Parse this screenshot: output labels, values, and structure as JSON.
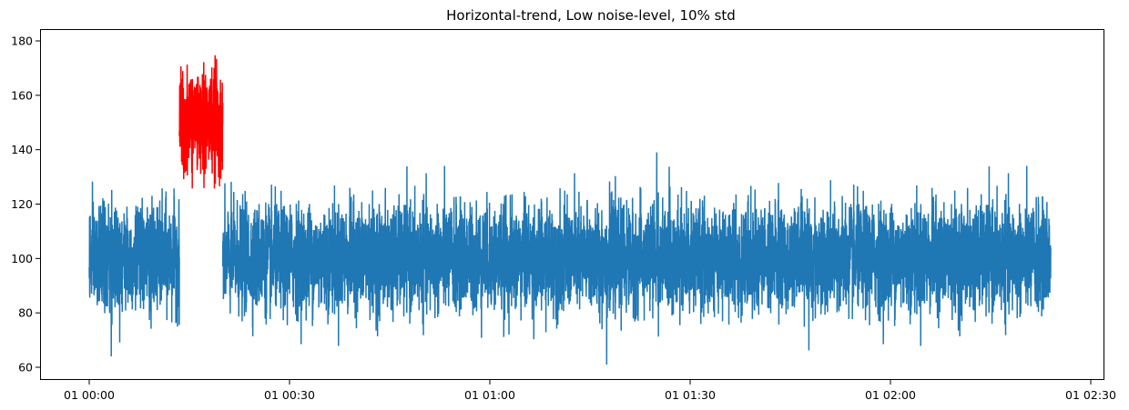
{
  "chart_data": {
    "type": "line",
    "title": "Horizontal-trend, Low noise-level, 10% std",
    "xlabel": "",
    "ylabel": "",
    "xlim": [
      "01 00:00",
      "01 02:30"
    ],
    "ylim": [
      55,
      184
    ],
    "grid": false,
    "legend": "none",
    "x_ticks": [
      {
        "label": "01 00:00",
        "minute": 0
      },
      {
        "label": "01 00:30",
        "minute": 30
      },
      {
        "label": "01 01:00",
        "minute": 60
      },
      {
        "label": "01 01:30",
        "minute": 90
      },
      {
        "label": "01 02:00",
        "minute": 120
      },
      {
        "label": "01 02:30",
        "minute": 150
      }
    ],
    "y_ticks": [
      60,
      80,
      100,
      120,
      140,
      160,
      180
    ],
    "series": [
      {
        "role": "normal",
        "color": "#1f77b4",
        "segments": [
          {
            "x_start": "01 00:00",
            "x_end": "01 00:13.5"
          },
          {
            "x_start": "01 00:20",
            "x_end": "01 02:24"
          }
        ],
        "mean": 100,
        "std": 10,
        "min": 61,
        "max": 139,
        "notable_points": [
          {
            "x": "01 00:03.3",
            "y": 64
          },
          {
            "x": "01 01:17.5",
            "y": 61
          },
          {
            "x": "01 01:25",
            "y": 139
          }
        ]
      },
      {
        "role": "anomaly",
        "color": "#ff0000",
        "segments": [
          {
            "x_start": "01 00:13.5",
            "x_end": "01 00:20"
          }
        ],
        "mean": 150,
        "std": 10,
        "min": 122,
        "max": 178
      }
    ]
  }
}
